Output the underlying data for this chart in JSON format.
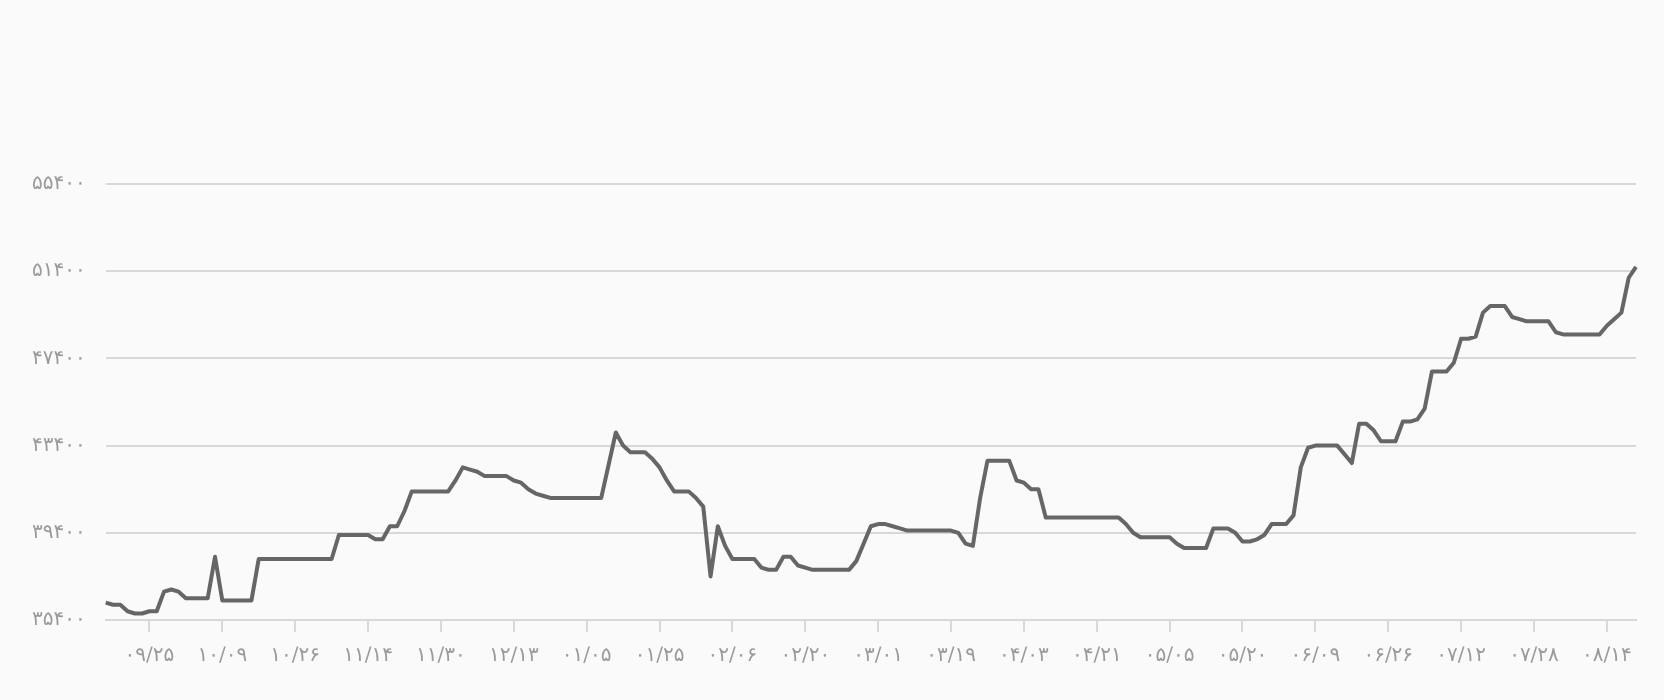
{
  "chart_data": {
    "type": "line",
    "ylim": [
      35400,
      55400
    ],
    "categories": [
      null,
      null,
      null,
      null,
      null,
      null,
      "۰۹/۲۵",
      null,
      null,
      null,
      null,
      null,
      null,
      null,
      null,
      null,
      "۱۰/۰۹",
      null,
      null,
      null,
      null,
      null,
      null,
      null,
      null,
      null,
      "۱۰/۲۶",
      null,
      null,
      null,
      null,
      null,
      null,
      null,
      null,
      null,
      "۱۱/۱۴",
      null,
      null,
      null,
      null,
      null,
      null,
      null,
      null,
      null,
      "۱۱/۳۰",
      null,
      null,
      null,
      null,
      null,
      null,
      null,
      null,
      null,
      "۱۲/۱۳",
      null,
      null,
      null,
      null,
      null,
      null,
      null,
      null,
      null,
      "۰۱/۰۵",
      null,
      null,
      null,
      null,
      null,
      null,
      null,
      null,
      null,
      "۰۱/۲۵",
      null,
      null,
      null,
      null,
      null,
      null,
      null,
      null,
      null,
      "۰۲/۰۶",
      null,
      null,
      null,
      null,
      null,
      null,
      null,
      null,
      null,
      "۰۲/۲۰",
      null,
      null,
      null,
      null,
      null,
      null,
      null,
      null,
      null,
      "۰۳/۰۱",
      null,
      null,
      null,
      null,
      null,
      null,
      null,
      null,
      null,
      "۰۳/۱۹",
      null,
      null,
      null,
      null,
      null,
      null,
      null,
      null,
      null,
      "۰۴/۰۳",
      null,
      null,
      null,
      null,
      null,
      null,
      null,
      null,
      null,
      "۰۴/۲۱",
      null,
      null,
      null,
      null,
      null,
      null,
      null,
      null,
      null,
      "۰۵/۰۵",
      null,
      null,
      null,
      null,
      null,
      null,
      null,
      null,
      null,
      "۰۵/۲۰",
      null,
      null,
      null,
      null,
      null,
      null,
      null,
      null,
      null,
      "۰۶/۰۹",
      null,
      null,
      null,
      null,
      null,
      null,
      null,
      null,
      null,
      "۰۶/۲۶",
      null,
      null,
      null,
      null,
      null,
      null,
      null,
      null,
      null,
      "۰۷/۱۲",
      null,
      null,
      null,
      null,
      null,
      null,
      null,
      null,
      null,
      "۰۷/۲۸",
      null,
      null,
      null,
      null,
      null,
      null,
      null,
      null,
      null,
      "۰۸/۱۴",
      null,
      null,
      null,
      null
    ],
    "yticks": [
      {
        "value": 35400,
        "label": "۳۵۴۰۰"
      },
      {
        "value": 39400,
        "label": "۳۹۴۰۰"
      },
      {
        "value": 43400,
        "label": "۴۳۴۰۰"
      },
      {
        "value": 47400,
        "label": "۴۷۴۰۰"
      },
      {
        "value": 51400,
        "label": "۵۱۴۰۰"
      },
      {
        "value": 55400,
        "label": "۵۵۴۰۰"
      }
    ],
    "grid": "y",
    "marker": "none",
    "line_style": "solid",
    "series": [
      {
        "color": "#666666",
        "values": [
          36200,
          36100,
          36100,
          35800,
          35700,
          35700,
          35800,
          35800,
          36700,
          36800,
          36700,
          36400,
          36400,
          36400,
          36400,
          38300,
          36300,
          36300,
          36300,
          36300,
          36300,
          38200,
          38200,
          38200,
          38200,
          38200,
          38200,
          38200,
          38200,
          38200,
          38200,
          38200,
          39300,
          39300,
          39300,
          39300,
          39300,
          39100,
          39100,
          39700,
          39700,
          40400,
          41300,
          41300,
          41300,
          41300,
          41300,
          41300,
          41800,
          42400,
          42300,
          42200,
          42000,
          42000,
          42000,
          42000,
          41800,
          41700,
          41400,
          41200,
          41100,
          41000,
          41000,
          41000,
          41000,
          41000,
          41000,
          41000,
          41000,
          42500,
          44000,
          43400,
          43100,
          43100,
          43100,
          42800,
          42400,
          41800,
          41300,
          41300,
          41300,
          41000,
          40600,
          37400,
          39700,
          38800,
          38200,
          38200,
          38200,
          38200,
          37800,
          37700,
          37700,
          38300,
          38300,
          37900,
          37800,
          37700,
          37700,
          37700,
          37700,
          37700,
          37700,
          38100,
          38900,
          39700,
          39800,
          39800,
          39700,
          39600,
          39500,
          39500,
          39500,
          39500,
          39500,
          39500,
          39500,
          39400,
          38900,
          38800,
          41000,
          42700,
          42700,
          42700,
          42700,
          41800,
          41700,
          41400,
          41400,
          40100,
          40100,
          40100,
          40100,
          40100,
          40100,
          40100,
          40100,
          40100,
          40100,
          40100,
          39800,
          39400,
          39200,
          39200,
          39200,
          39200,
          39200,
          38900,
          38700,
          38700,
          38700,
          38700,
          39600,
          39600,
          39600,
          39400,
          39000,
          39000,
          39100,
          39300,
          39800,
          39800,
          39800,
          40200,
          42400,
          43300,
          43400,
          43400,
          43400,
          43400,
          43000,
          42600,
          44400,
          44400,
          44100,
          43600,
          43600,
          43600,
          44500,
          44500,
          44600,
          45100,
          46800,
          46800,
          46800,
          47200,
          48300,
          48300,
          48400,
          49500,
          49800,
          49800,
          49800,
          49300,
          49200,
          49100,
          49100,
          49100,
          49100,
          48600,
          48500,
          48500,
          48500,
          48500,
          48500,
          48500,
          48900,
          49200,
          49500,
          51100,
          51600
        ]
      }
    ]
  }
}
